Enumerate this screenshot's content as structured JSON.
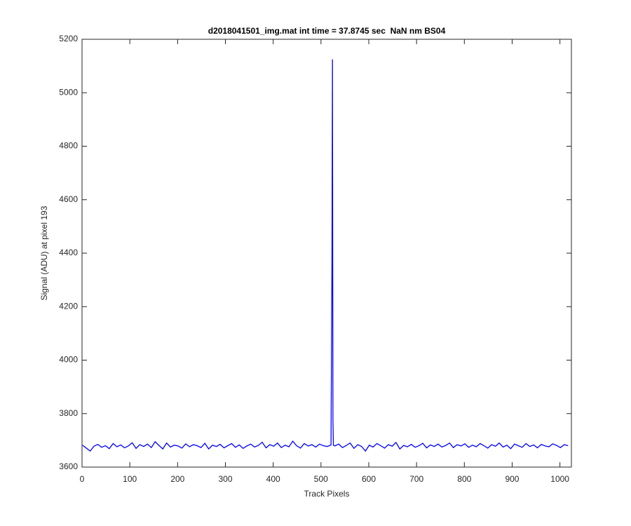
{
  "chart_data": {
    "type": "line",
    "title": "d2018041501_img.mat int time = 37.8745 sec  NaN nm BS04",
    "x_label": "Track Pixels",
    "y_label": "Signal (ADU) at pixel 193",
    "x": [
      1,
      9,
      17,
      25,
      33,
      41,
      49,
      57,
      65,
      73,
      81,
      89,
      97,
      105,
      113,
      121,
      129,
      137,
      145,
      153,
      161,
      169,
      177,
      185,
      193,
      201,
      209,
      217,
      225,
      233,
      241,
      249,
      257,
      265,
      273,
      281,
      289,
      297,
      305,
      313,
      321,
      329,
      337,
      345,
      353,
      361,
      369,
      377,
      385,
      393,
      401,
      409,
      417,
      425,
      433,
      441,
      449,
      457,
      465,
      473,
      481,
      489,
      497,
      505,
      513,
      521,
      523,
      524,
      525,
      526,
      529,
      537,
      545,
      553,
      561,
      569,
      577,
      585,
      593,
      601,
      609,
      617,
      625,
      633,
      641,
      649,
      657,
      665,
      673,
      681,
      689,
      697,
      705,
      713,
      721,
      729,
      737,
      745,
      753,
      761,
      769,
      777,
      785,
      793,
      801,
      809,
      817,
      825,
      833,
      841,
      849,
      857,
      865,
      873,
      881,
      889,
      897,
      905,
      913,
      921,
      929,
      937,
      945,
      953,
      961,
      969,
      977,
      985,
      993,
      1001,
      1009,
      1017
    ],
    "values": [
      3682,
      3671,
      3660,
      3678,
      3685,
      3674,
      3680,
      3669,
      3688,
      3676,
      3683,
      3672,
      3679,
      3691,
      3670,
      3684,
      3677,
      3686,
      3673,
      3695,
      3681,
      3668,
      3690,
      3675,
      3682,
      3679,
      3671,
      3687,
      3676,
      3684,
      3680,
      3673,
      3689,
      3668,
      3682,
      3677,
      3685,
      3672,
      3680,
      3688,
      3674,
      3683,
      3670,
      3679,
      3686,
      3675,
      3681,
      3693,
      3672,
      3684,
      3678,
      3690,
      3673,
      3682,
      3676,
      3697,
      3680,
      3671,
      3688,
      3679,
      3684,
      3675,
      3686,
      3680,
      3677,
      3683,
      4370,
      5125,
      3775,
      3682,
      3679,
      3686,
      3673,
      3681,
      3690,
      3670,
      3684,
      3677,
      3660,
      3682,
      3675,
      3688,
      3680,
      3671,
      3684,
      3678,
      3692,
      3668,
      3681,
      3676,
      3685,
      3674,
      3680,
      3689,
      3672,
      3683,
      3677,
      3686,
      3675,
      3681,
      3690,
      3673,
      3684,
      3679,
      3687,
      3674,
      3682,
      3676,
      3688,
      3680,
      3671,
      3684,
      3678,
      3690,
      3675,
      3682,
      3669,
      3686,
      3680,
      3674,
      3688,
      3677,
      3683,
      3672,
      3685,
      3679,
      3676,
      3687,
      3681,
      3673,
      3684,
      3680
    ],
    "color": "#0000ff",
    "xlim": [
      0,
      1024
    ],
    "xticks": [
      0,
      100,
      200,
      300,
      400,
      500,
      600,
      700,
      800,
      900,
      1000
    ],
    "ylim": [
      3600,
      5200
    ],
    "yticks": [
      3600,
      3800,
      4000,
      4200,
      4400,
      4600,
      4800,
      5000,
      5200
    ],
    "grid": false
  }
}
